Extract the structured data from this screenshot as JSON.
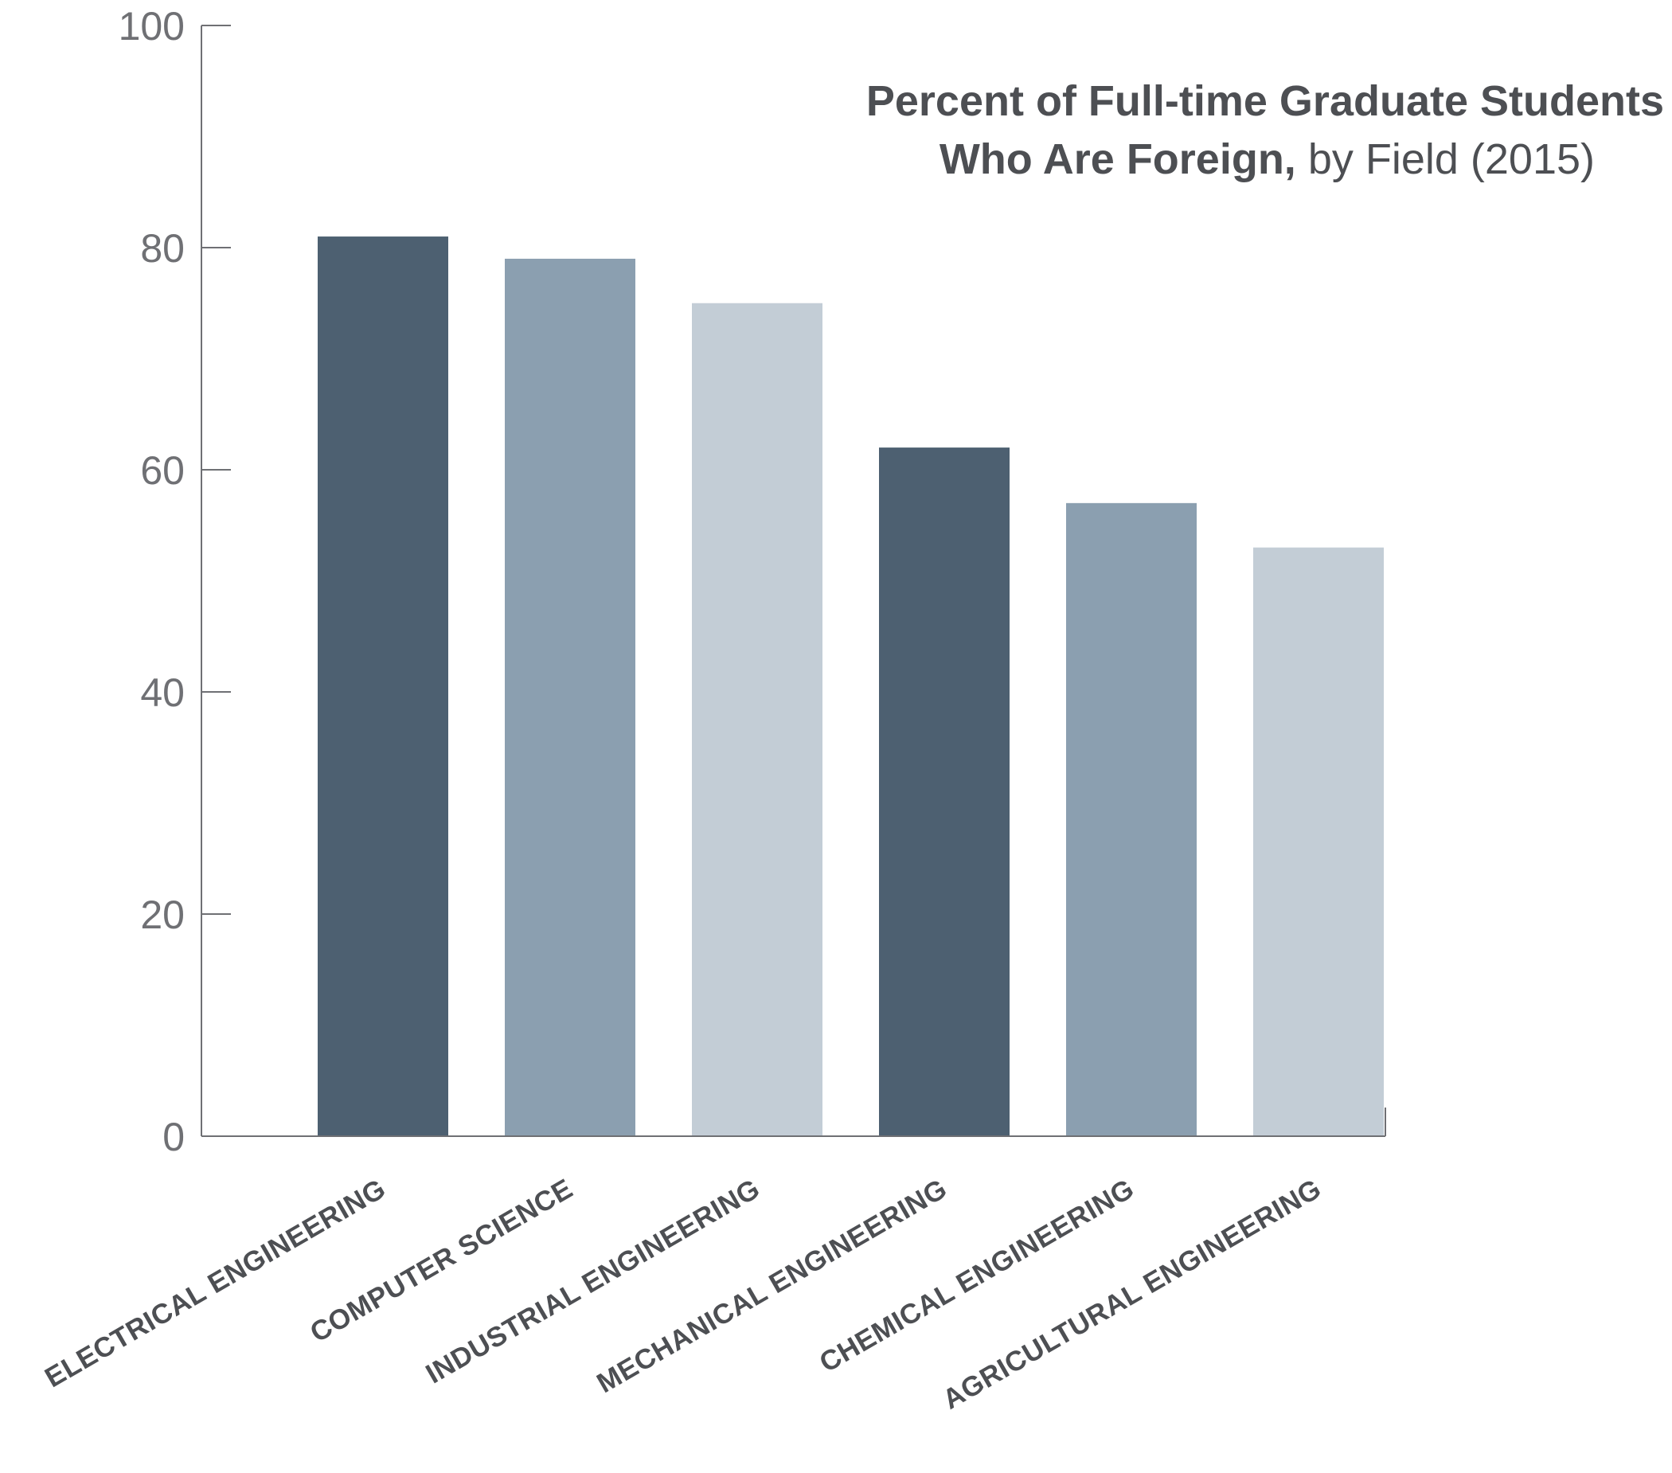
{
  "chart_data": {
    "type": "bar",
    "title": {
      "line1": "Percent of Full-time Graduate Students",
      "line2_bold": "Who Are Foreign,",
      "line2_normal": " by Field (2015)"
    },
    "xlabel": "",
    "ylabel": "",
    "ylim": [
      0,
      100
    ],
    "yticks": [
      0,
      20,
      40,
      60,
      80,
      100
    ],
    "grid": false,
    "categories": [
      "ELECTRICAL ENGINEERING",
      "COMPUTER SCIENCE",
      "INDUSTRIAL ENGINEERING",
      "MECHANICAL ENGINEERING",
      "CHEMICAL ENGINEERING",
      "AGRICULTURAL ENGINEERING"
    ],
    "values": [
      81,
      79,
      75,
      62,
      57,
      53
    ],
    "bar_colors": [
      "#4d6071",
      "#8b9fb0",
      "#c3cdd6",
      "#4d6071",
      "#8b9fb0",
      "#c3cdd6"
    ]
  }
}
